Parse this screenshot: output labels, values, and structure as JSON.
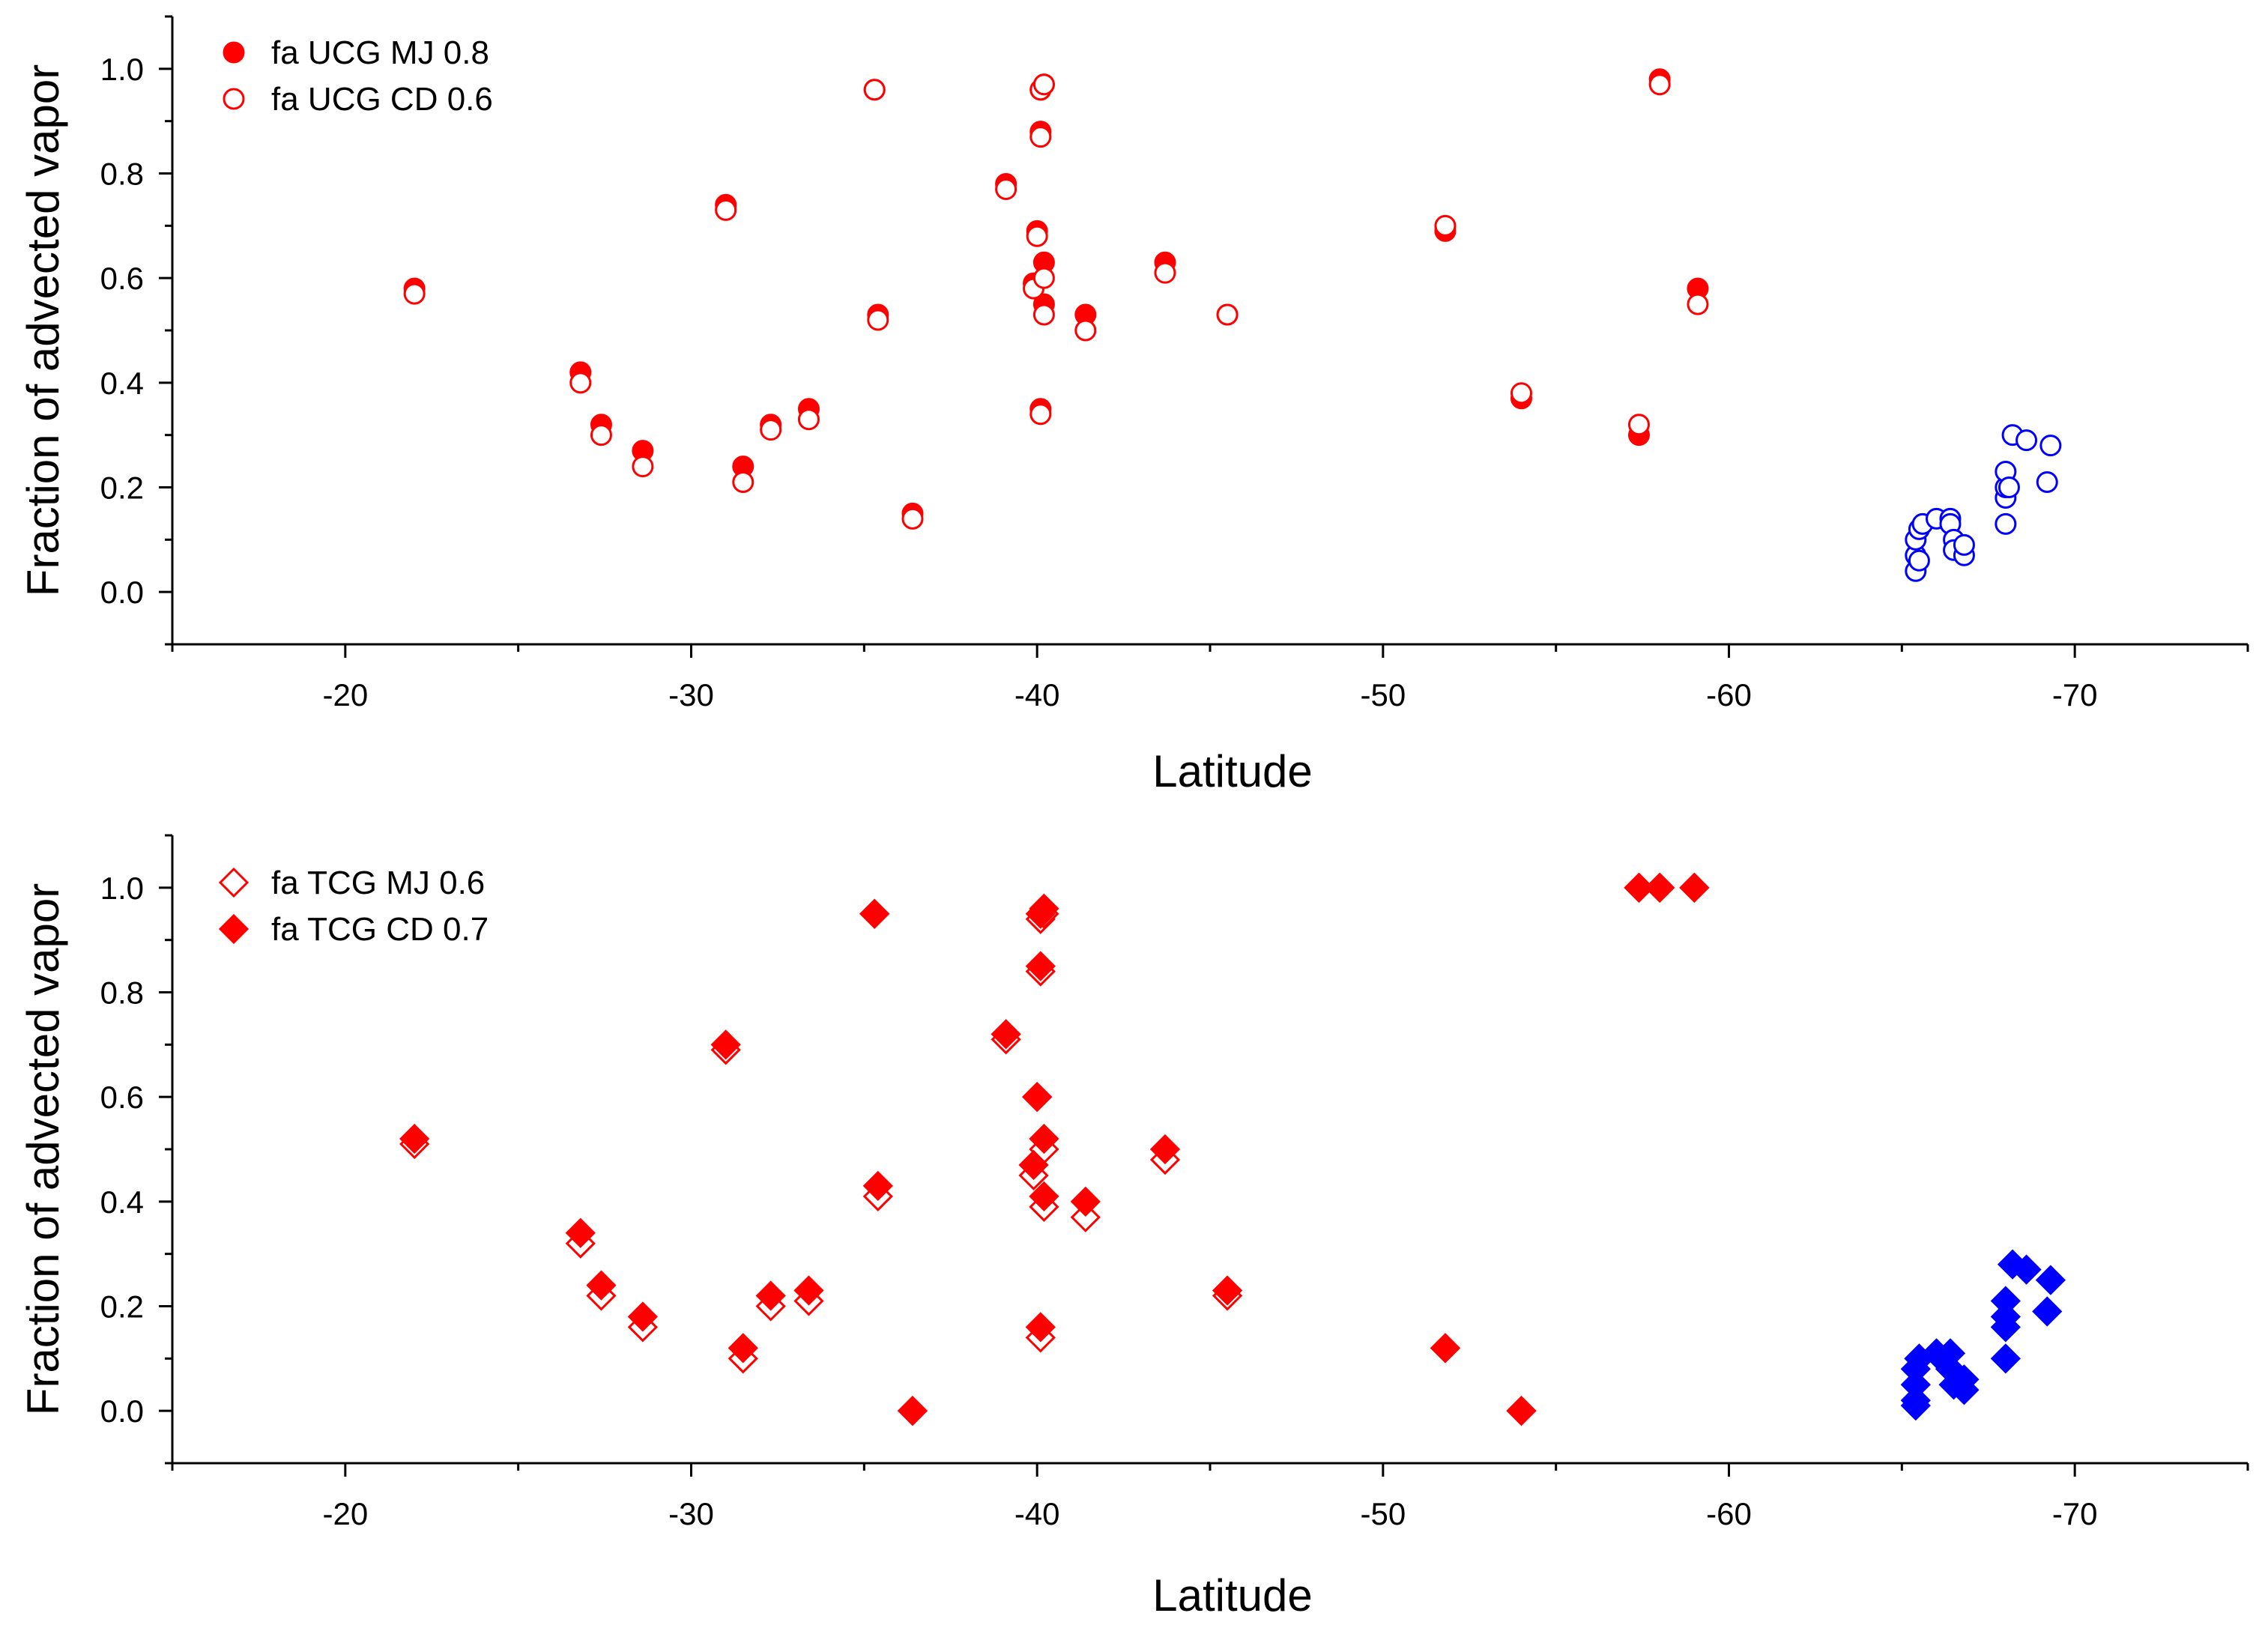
{
  "colors": {
    "red": "#ff0000",
    "blue": "#0000ff",
    "axis": "#000000"
  },
  "chart_data": [
    {
      "type": "scatter",
      "xlabel": "Latitude",
      "ylabel": "Fraction of advected vapor",
      "xlim": [
        -15,
        -75
      ],
      "ylim": [
        -0.1,
        1.1
      ],
      "xticks": [
        -20,
        -30,
        -40,
        -50,
        -60,
        -70
      ],
      "yticks": [
        0.0,
        0.2,
        0.4,
        0.6,
        0.8,
        1.0
      ],
      "legend_position": "top-left",
      "series": [
        {
          "name": "fa UCG MJ 0.8",
          "marker": "circle-filled",
          "color": "red",
          "points": [
            [
              -22,
              0.58
            ],
            [
              -26.8,
              0.42
            ],
            [
              -27.4,
              0.32
            ],
            [
              -28.6,
              0.27
            ],
            [
              -31.0,
              0.74
            ],
            [
              -31.5,
              0.24
            ],
            [
              -32.3,
              0.32
            ],
            [
              -33.4,
              0.35
            ],
            [
              -35.3,
              0.96
            ],
            [
              -35.4,
              0.53
            ],
            [
              -36.4,
              0.15
            ],
            [
              -39.1,
              0.78
            ],
            [
              -39.9,
              0.59
            ],
            [
              -40.0,
              0.69
            ],
            [
              -40.1,
              0.88
            ],
            [
              -40.1,
              0.35
            ],
            [
              -40.1,
              0.96
            ],
            [
              -40.2,
              0.63
            ],
            [
              -40.2,
              0.55
            ],
            [
              -40.2,
              0.97
            ],
            [
              -41.4,
              0.53
            ],
            [
              -43.7,
              0.63
            ],
            [
              -45.5,
              0.53
            ],
            [
              -51.8,
              0.69
            ],
            [
              -54.0,
              0.37
            ],
            [
              -57.4,
              0.3
            ],
            [
              -58.0,
              0.98
            ],
            [
              -59.1,
              0.58
            ]
          ]
        },
        {
          "name": "fa UCG CD 0.6",
          "marker": "circle-open",
          "color": "red",
          "points": [
            [
              -22,
              0.57
            ],
            [
              -26.8,
              0.4
            ],
            [
              -27.4,
              0.3
            ],
            [
              -28.6,
              0.24
            ],
            [
              -31.0,
              0.73
            ],
            [
              -31.5,
              0.21
            ],
            [
              -32.3,
              0.31
            ],
            [
              -33.4,
              0.33
            ],
            [
              -35.3,
              0.96
            ],
            [
              -35.4,
              0.52
            ],
            [
              -36.4,
              0.14
            ],
            [
              -39.1,
              0.77
            ],
            [
              -39.9,
              0.58
            ],
            [
              -40.0,
              0.68
            ],
            [
              -40.1,
              0.87
            ],
            [
              -40.1,
              0.34
            ],
            [
              -40.1,
              0.96
            ],
            [
              -40.2,
              0.6
            ],
            [
              -40.2,
              0.53
            ],
            [
              -40.2,
              0.97
            ],
            [
              -41.4,
              0.5
            ],
            [
              -43.7,
              0.61
            ],
            [
              -45.5,
              0.53
            ],
            [
              -51.8,
              0.7
            ],
            [
              -54.0,
              0.38
            ],
            [
              -57.4,
              0.32
            ],
            [
              -58.0,
              0.97
            ],
            [
              -59.1,
              0.55
            ]
          ]
        },
        {
          "name": "",
          "marker": "circle-open",
          "color": "blue",
          "points": [
            [
              -65.4,
              0.04
            ],
            [
              -65.4,
              0.07
            ],
            [
              -65.4,
              0.1
            ],
            [
              -65.5,
              0.12
            ],
            [
              -65.6,
              0.13
            ],
            [
              -65.5,
              0.06
            ],
            [
              -66.0,
              0.14
            ],
            [
              -66.4,
              0.14
            ],
            [
              -66.4,
              0.13
            ],
            [
              -66.5,
              0.1
            ],
            [
              -66.5,
              0.08
            ],
            [
              -66.8,
              0.07
            ],
            [
              -66.8,
              0.09
            ],
            [
              -68.0,
              0.13
            ],
            [
              -68.0,
              0.18
            ],
            [
              -68.0,
              0.2
            ],
            [
              -68.0,
              0.23
            ],
            [
              -68.1,
              0.2
            ],
            [
              -68.2,
              0.3
            ],
            [
              -68.6,
              0.29
            ],
            [
              -69.2,
              0.21
            ],
            [
              -69.3,
              0.28
            ]
          ]
        }
      ]
    },
    {
      "type": "scatter",
      "xlabel": "Latitude",
      "ylabel": "Fraction of advected vapor",
      "xlim": [
        -15,
        -75
      ],
      "ylim": [
        -0.1,
        1.1
      ],
      "xticks": [
        -20,
        -30,
        -40,
        -50,
        -60,
        -70
      ],
      "yticks": [
        0.0,
        0.2,
        0.4,
        0.6,
        0.8,
        1.0
      ],
      "legend_position": "top-left",
      "series": [
        {
          "name": "fa TCG MJ 0.6",
          "marker": "diamond-open",
          "color": "red",
          "points": [
            [
              -22,
              0.51
            ],
            [
              -26.8,
              0.32
            ],
            [
              -27.4,
              0.22
            ],
            [
              -28.6,
              0.16
            ],
            [
              -31.0,
              0.69
            ],
            [
              -31.5,
              0.1
            ],
            [
              -32.3,
              0.2
            ],
            [
              -33.4,
              0.21
            ],
            [
              -35.3,
              0.95
            ],
            [
              -35.4,
              0.41
            ],
            [
              -36.4,
              0.0
            ],
            [
              -39.1,
              0.71
            ],
            [
              -39.9,
              0.45
            ],
            [
              -40.0,
              0.6
            ],
            [
              -40.1,
              0.84
            ],
            [
              -40.1,
              0.14
            ],
            [
              -40.1,
              0.94
            ],
            [
              -40.2,
              0.39
            ],
            [
              -40.2,
              0.5
            ],
            [
              -40.2,
              0.95
            ],
            [
              -41.4,
              0.37
            ],
            [
              -43.7,
              0.48
            ],
            [
              -45.5,
              0.22
            ],
            [
              -51.8,
              0.12
            ],
            [
              -54.0,
              0.0
            ],
            [
              -57.4,
              1.0
            ],
            [
              -58.0,
              1.0
            ],
            [
              -59.0,
              1.0
            ]
          ]
        },
        {
          "name": "fa TCG CD 0.7",
          "marker": "diamond-filled",
          "color": "red",
          "points": [
            [
              -22,
              0.52
            ],
            [
              -26.8,
              0.34
            ],
            [
              -27.4,
              0.24
            ],
            [
              -28.6,
              0.18
            ],
            [
              -31.0,
              0.7
            ],
            [
              -31.5,
              0.12
            ],
            [
              -32.3,
              0.22
            ],
            [
              -33.4,
              0.23
            ],
            [
              -35.3,
              0.95
            ],
            [
              -35.4,
              0.43
            ],
            [
              -36.4,
              0.0
            ],
            [
              -39.1,
              0.72
            ],
            [
              -39.9,
              0.47
            ],
            [
              -40.0,
              0.6
            ],
            [
              -40.1,
              0.85
            ],
            [
              -40.1,
              0.16
            ],
            [
              -40.1,
              0.95
            ],
            [
              -40.2,
              0.41
            ],
            [
              -40.2,
              0.52
            ],
            [
              -40.2,
              0.96
            ],
            [
              -41.4,
              0.4
            ],
            [
              -43.7,
              0.5
            ],
            [
              -45.5,
              0.23
            ],
            [
              -51.8,
              0.12
            ],
            [
              -54.0,
              0.0
            ],
            [
              -57.4,
              1.0
            ],
            [
              -58.0,
              1.0
            ],
            [
              -59.0,
              1.0
            ]
          ]
        },
        {
          "name": "",
          "marker": "diamond-filled",
          "color": "blue",
          "points": [
            [
              -65.4,
              0.01
            ],
            [
              -65.4,
              0.02
            ],
            [
              -65.4,
              0.05
            ],
            [
              -65.4,
              0.08
            ],
            [
              -65.5,
              0.1
            ],
            [
              -66.0,
              0.11
            ],
            [
              -66.4,
              0.11
            ],
            [
              -66.4,
              0.08
            ],
            [
              -66.5,
              0.05
            ],
            [
              -66.8,
              0.04
            ],
            [
              -66.8,
              0.06
            ],
            [
              -68.0,
              0.1
            ],
            [
              -68.0,
              0.16
            ],
            [
              -68.0,
              0.18
            ],
            [
              -68.0,
              0.21
            ],
            [
              -68.2,
              0.28
            ],
            [
              -68.6,
              0.27
            ],
            [
              -69.2,
              0.19
            ],
            [
              -69.3,
              0.25
            ]
          ]
        }
      ]
    }
  ]
}
